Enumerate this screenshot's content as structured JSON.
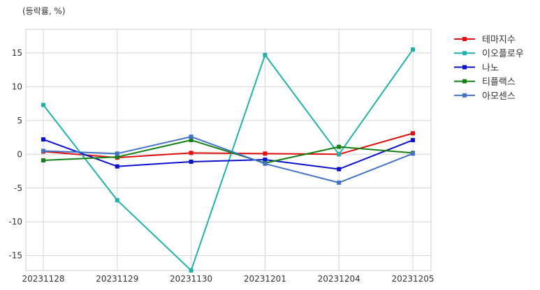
{
  "chart_data": {
    "type": "line",
    "unit_label": "(등락률, %)",
    "categories": [
      "20231128",
      "20231129",
      "20231130",
      "20231201",
      "20231204",
      "20231205"
    ],
    "ylim": [
      -17.2,
      18.5
    ],
    "yticks": [
      -15,
      -10,
      -5,
      0,
      5,
      10,
      15
    ],
    "grid": true,
    "legend_position": "right",
    "series": [
      {
        "name": "테마지수",
        "color": "#dd1111",
        "values": [
          0.4,
          -0.5,
          0.2,
          0.1,
          0.0,
          3.1
        ]
      },
      {
        "name": "이오플로우",
        "color": "#22b0a8",
        "values": [
          7.3,
          -6.8,
          -17.2,
          14.7,
          0.0,
          15.5
        ]
      },
      {
        "name": "나노",
        "color": "#0b11cc",
        "values": [
          2.2,
          -1.8,
          -1.1,
          -0.8,
          -2.2,
          2.1
        ]
      },
      {
        "name": "티플랙스",
        "color": "#148014",
        "values": [
          -0.9,
          -0.4,
          2.1,
          -1.3,
          1.1,
          0.2
        ]
      },
      {
        "name": "아모센스",
        "color": "#4472c4",
        "values": [
          0.5,
          0.1,
          2.6,
          -1.4,
          -4.2,
          0.1
        ]
      }
    ]
  }
}
